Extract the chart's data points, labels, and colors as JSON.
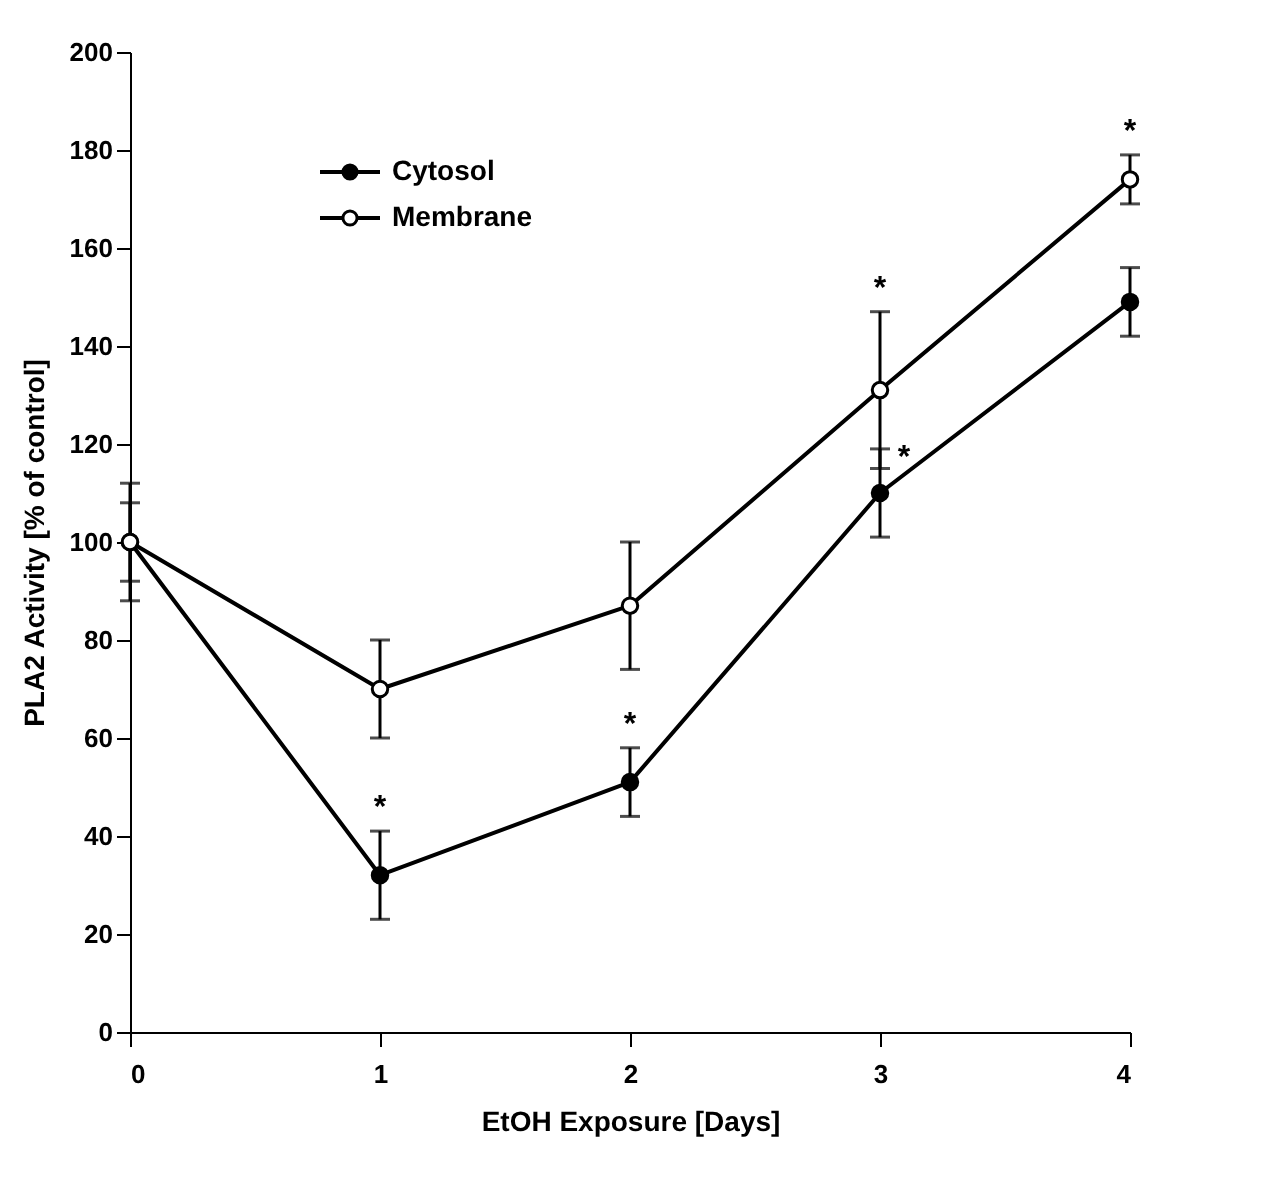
{
  "chart_data": {
    "type": "line",
    "xlabel": "EtOH Exposure [Days]",
    "ylabel": "PLA2 Activity [% of control]",
    "x": [
      0,
      1,
      2,
      3,
      4
    ],
    "xlim": [
      0,
      4
    ],
    "xticks": [
      0,
      1,
      2,
      3,
      4
    ],
    "ylim": [
      0,
      200
    ],
    "yticks": [
      0,
      20,
      40,
      60,
      80,
      100,
      120,
      140,
      160,
      180,
      200
    ],
    "grid": false,
    "legend": "top left",
    "marker": "circle",
    "line_style": "solid",
    "series": [
      {
        "name": "Cytosol",
        "color": "#000000",
        "values": [
          100,
          32,
          51,
          110,
          149
        ],
        "errors": [
          8,
          9,
          7,
          9,
          7
        ]
      },
      {
        "name": "Membrane",
        "color": "#000000",
        "values": [
          100,
          70,
          87,
          131,
          174
        ],
        "errors": [
          12,
          10,
          13,
          16,
          5
        ]
      }
    ],
    "annotations": [
      {
        "text": "*",
        "x": 1,
        "y": 32
      },
      {
        "text": "*",
        "x": 2,
        "y": 51
      },
      {
        "text": "*",
        "x": 3,
        "y": 110
      },
      {
        "text": "*",
        "x": 3,
        "y": 131
      },
      {
        "text": "*",
        "x": 4,
        "y": 174
      }
    ]
  }
}
